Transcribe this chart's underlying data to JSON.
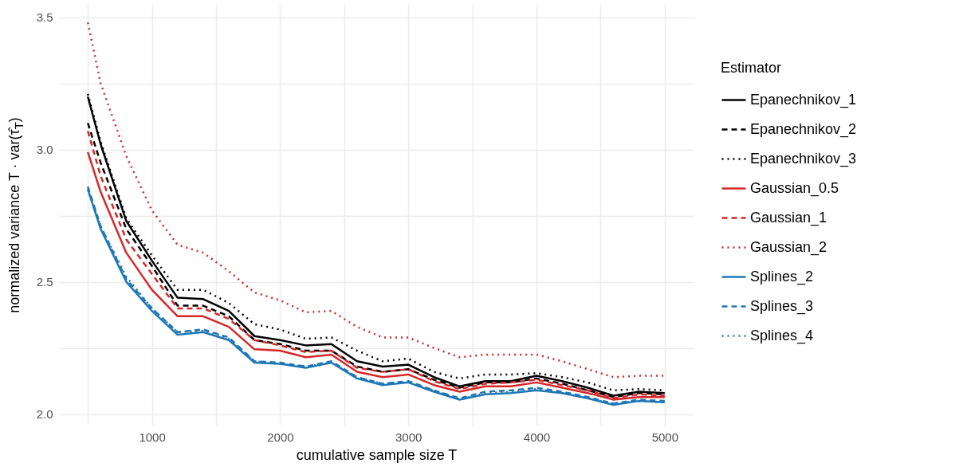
{
  "chart_data": {
    "type": "line",
    "xlabel": "cumulative sample size T",
    "ylabel": "normalized variance  T · var(τ̂$_{T}$)",
    "legend_title": "Estimator",
    "legend": "right",
    "grid": true,
    "x": [
      500,
      600,
      800,
      1000,
      1200,
      1400,
      1600,
      1800,
      2000,
      2200,
      2400,
      2600,
      2800,
      3000,
      3200,
      3400,
      3600,
      3800,
      4000,
      4200,
      4400,
      4600,
      4800,
      5000
    ],
    "xlim": [
      275,
      5225
    ],
    "xticks": [
      {
        "value": 500,
        "label": null
      },
      1000,
      {
        "value": 1500,
        "label": null
      },
      2000,
      {
        "value": 2500,
        "label": null
      },
      3000,
      {
        "value": 3500,
        "label": null
      },
      4000,
      {
        "value": 4500,
        "label": null
      },
      5000
    ],
    "ylim": [
      1.96,
      3.55
    ],
    "yticks": [
      {
        "value": 2,
        "label": "2.0"
      },
      {
        "value": 2.25,
        "label": null
      },
      2.5,
      {
        "value": 2.75,
        "label": null
      },
      {
        "value": 3,
        "label": "3.0"
      },
      {
        "value": 3.25,
        "label": null
      },
      3.5
    ],
    "series": [
      {
        "name": "Epanechnikov_1",
        "color": "#000000",
        "line_style": "solid",
        "values": [
          3.2,
          3.02,
          2.73,
          2.58,
          2.44,
          2.435,
          2.39,
          2.295,
          2.28,
          2.26,
          2.265,
          2.2,
          2.18,
          2.187,
          2.14,
          2.105,
          2.125,
          2.125,
          2.145,
          2.125,
          2.1,
          2.07,
          2.085,
          2.08
        ]
      },
      {
        "name": "Epanechnikov_2",
        "color": "#000000",
        "line_style": "dashed",
        "values": [
          3.1,
          2.95,
          2.7,
          2.56,
          2.41,
          2.41,
          2.37,
          2.28,
          2.265,
          2.24,
          2.24,
          2.18,
          2.16,
          2.17,
          2.13,
          2.1,
          2.12,
          2.12,
          2.135,
          2.115,
          2.09,
          2.065,
          2.08,
          2.075
        ]
      },
      {
        "name": "Epanechnikov_3",
        "color": "#000000",
        "line_style": "dotted",
        "values": [
          3.21,
          3.03,
          2.74,
          2.6,
          2.47,
          2.47,
          2.42,
          2.34,
          2.32,
          2.285,
          2.29,
          2.24,
          2.2,
          2.21,
          2.16,
          2.135,
          2.15,
          2.15,
          2.155,
          2.14,
          2.12,
          2.09,
          2.095,
          2.09
        ]
      },
      {
        "name": "Gaussian_0.5",
        "color": "#d62728",
        "line_style": "solid",
        "values": [
          2.99,
          2.84,
          2.61,
          2.47,
          2.37,
          2.37,
          2.33,
          2.245,
          2.24,
          2.215,
          2.225,
          2.16,
          2.14,
          2.15,
          2.11,
          2.085,
          2.105,
          2.105,
          2.12,
          2.1,
          2.08,
          2.055,
          2.065,
          2.065
        ]
      },
      {
        "name": "Gaussian_1",
        "color": "#d62728",
        "line_style": "dashed",
        "values": [
          3.07,
          2.9,
          2.66,
          2.53,
          2.4,
          2.4,
          2.36,
          2.28,
          2.26,
          2.235,
          2.24,
          2.175,
          2.16,
          2.17,
          2.125,
          2.095,
          2.115,
          2.12,
          2.13,
          2.11,
          2.09,
          2.06,
          2.075,
          2.07
        ]
      },
      {
        "name": "Gaussian_2",
        "color": "#d62728",
        "line_style": "dotted",
        "values": [
          3.48,
          3.25,
          2.975,
          2.77,
          2.64,
          2.61,
          2.54,
          2.46,
          2.43,
          2.385,
          2.39,
          2.33,
          2.29,
          2.29,
          2.25,
          2.215,
          2.225,
          2.225,
          2.225,
          2.2,
          2.17,
          2.14,
          2.145,
          2.145
        ]
      },
      {
        "name": "Splines_2",
        "color": "#1f77b4",
        "line_style": "solid",
        "values": [
          2.85,
          2.7,
          2.5,
          2.39,
          2.3,
          2.31,
          2.28,
          2.195,
          2.19,
          2.175,
          2.195,
          2.135,
          2.11,
          2.12,
          2.085,
          2.055,
          2.075,
          2.08,
          2.09,
          2.08,
          2.06,
          2.035,
          2.05,
          2.045
        ]
      },
      {
        "name": "Splines_3",
        "color": "#1f77b4",
        "line_style": "dashed",
        "values": [
          2.86,
          2.71,
          2.51,
          2.4,
          2.31,
          2.32,
          2.29,
          2.2,
          2.195,
          2.18,
          2.2,
          2.14,
          2.115,
          2.125,
          2.09,
          2.06,
          2.085,
          2.09,
          2.1,
          2.085,
          2.065,
          2.04,
          2.055,
          2.05
        ]
      },
      {
        "name": "Splines_4",
        "color": "#1f77b4",
        "line_style": "dotted",
        "values": [
          2.85,
          2.71,
          2.52,
          2.4,
          2.31,
          2.315,
          2.285,
          2.2,
          2.19,
          2.18,
          2.195,
          2.14,
          2.115,
          2.12,
          2.09,
          2.055,
          2.08,
          2.085,
          2.095,
          2.08,
          2.06,
          2.04,
          2.05,
          2.045
        ]
      }
    ]
  }
}
